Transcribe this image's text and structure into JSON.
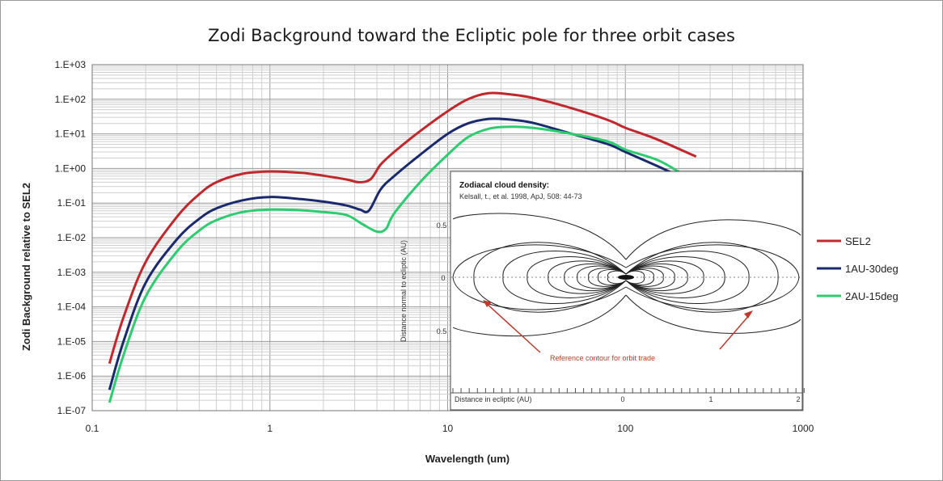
{
  "chart_data": {
    "type": "line",
    "title": "Zodi Background toward the Ecliptic pole for three orbit cases",
    "xlabel": "Wavelength (um)",
    "ylabel": "Zodi Background relative to SEL2",
    "x_scale": "log",
    "y_scale": "log",
    "xlim": [
      0.1,
      1000
    ],
    "ylim": [
      1e-07,
      1000
    ],
    "x_ticks": [
      "0.1",
      "1",
      "10",
      "100",
      "1000"
    ],
    "y_ticks": [
      "1.E-07",
      "1.E-06",
      "1.E-05",
      "1.E-04",
      "1.E-03",
      "1.E-02",
      "1.E-01",
      "1.E+00",
      "1.E+01",
      "1.E+02",
      "1.E+03"
    ],
    "grid": true,
    "legend_position": "right",
    "series": [
      {
        "name": "SEL2",
        "color": "#c0282d",
        "points": [
          [
            0.125,
            2.3e-06
          ],
          [
            0.15,
            5e-05
          ],
          [
            0.2,
            0.002
          ],
          [
            0.3,
            0.04
          ],
          [
            0.4,
            0.18
          ],
          [
            0.5,
            0.4
          ],
          [
            0.7,
            0.7
          ],
          [
            1.0,
            0.82
          ],
          [
            1.5,
            0.75
          ],
          [
            2.0,
            0.62
          ],
          [
            2.7,
            0.48
          ],
          [
            3.2,
            0.4
          ],
          [
            3.7,
            0.5
          ],
          [
            4.2,
            1.3
          ],
          [
            5,
            3.0
          ],
          [
            7,
            12
          ],
          [
            10,
            45
          ],
          [
            13,
            100
          ],
          [
            17,
            150
          ],
          [
            22,
            140
          ],
          [
            30,
            110
          ],
          [
            50,
            55
          ],
          [
            80,
            25
          ],
          [
            100,
            15
          ],
          [
            150,
            7
          ],
          [
            250,
            2.2
          ]
        ]
      },
      {
        "name": "1AU-30deg",
        "color": "#1a2a6c",
        "points": [
          [
            0.125,
            4e-07
          ],
          [
            0.15,
            1e-05
          ],
          [
            0.2,
            0.0005
          ],
          [
            0.3,
            0.009
          ],
          [
            0.4,
            0.035
          ],
          [
            0.5,
            0.07
          ],
          [
            0.7,
            0.12
          ],
          [
            1.0,
            0.15
          ],
          [
            1.5,
            0.13
          ],
          [
            2.0,
            0.11
          ],
          [
            2.7,
            0.085
          ],
          [
            3.2,
            0.065
          ],
          [
            3.6,
            0.06
          ],
          [
            4.2,
            0.25
          ],
          [
            5,
            0.6
          ],
          [
            7,
            2.5
          ],
          [
            10,
            10
          ],
          [
            13,
            20
          ],
          [
            17,
            27
          ],
          [
            22,
            26
          ],
          [
            30,
            21
          ],
          [
            50,
            10
          ],
          [
            80,
            5
          ],
          [
            100,
            3
          ],
          [
            150,
            1.2
          ],
          [
            200,
            0.6
          ]
        ]
      },
      {
        "name": "2AU-15deg",
        "color": "#2ecc71",
        "points": [
          [
            0.125,
            1.7e-07
          ],
          [
            0.15,
            4e-06
          ],
          [
            0.2,
            0.0002
          ],
          [
            0.3,
            0.004
          ],
          [
            0.4,
            0.016
          ],
          [
            0.5,
            0.032
          ],
          [
            0.7,
            0.055
          ],
          [
            1.0,
            0.065
          ],
          [
            1.5,
            0.062
          ],
          [
            2.0,
            0.055
          ],
          [
            2.7,
            0.045
          ],
          [
            3.3,
            0.025
          ],
          [
            4.0,
            0.015
          ],
          [
            4.5,
            0.018
          ],
          [
            5,
            0.05
          ],
          [
            7,
            0.4
          ],
          [
            10,
            2.5
          ],
          [
            13,
            8
          ],
          [
            17,
            14
          ],
          [
            22,
            16
          ],
          [
            30,
            15
          ],
          [
            50,
            10
          ],
          [
            80,
            6
          ],
          [
            100,
            3.5
          ],
          [
            150,
            1.8
          ],
          [
            200,
            0.8
          ]
        ]
      }
    ],
    "inset": {
      "title": "Zodiacal cloud density:",
      "citation": "Kelsall, t., et al.  1998, ApJ, 508: 44-73",
      "xlabel": "Distance in ecliptic (AU)",
      "ylabel": "Distance normal to ecliptic (AU)",
      "y_ticks": [
        "0.5",
        "0",
        "0.5"
      ],
      "x_ticks": [
        "0",
        "1",
        "2"
      ],
      "annotation": "Reference contour for orbit trade"
    }
  }
}
